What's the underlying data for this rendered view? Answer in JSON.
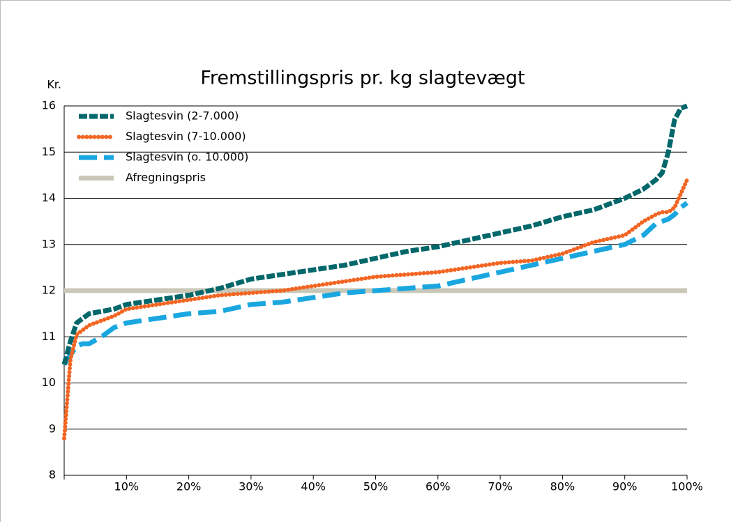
{
  "chart_data": {
    "type": "line",
    "title": "Fremstillingspris pr. kg slagtevægt",
    "ylabel": "Kr.",
    "x": [
      0,
      1,
      2,
      3,
      4,
      6,
      8,
      10,
      15,
      20,
      25,
      30,
      35,
      40,
      45,
      50,
      55,
      60,
      65,
      70,
      75,
      80,
      85,
      90,
      93,
      95,
      96,
      97,
      98,
      99,
      100
    ],
    "series": [
      {
        "name": "Slagtesvin (2-7.000)",
        "color": "#00676a",
        "style": "dashed",
        "values": [
          10.4,
          10.9,
          11.3,
          11.4,
          11.5,
          11.55,
          11.6,
          11.7,
          11.8,
          11.9,
          12.05,
          12.25,
          12.35,
          12.45,
          12.55,
          12.7,
          12.85,
          12.95,
          13.1,
          13.25,
          13.4,
          13.6,
          13.75,
          14.0,
          14.2,
          14.4,
          14.55,
          15.0,
          15.7,
          15.95,
          16.0
        ]
      },
      {
        "name": "Slagtesvin (7-10.000)",
        "color": "#f26522",
        "style": "dotted",
        "values": [
          8.8,
          10.5,
          11.05,
          11.15,
          11.25,
          11.35,
          11.45,
          11.6,
          11.7,
          11.8,
          11.9,
          11.95,
          12.0,
          12.1,
          12.2,
          12.3,
          12.35,
          12.4,
          12.5,
          12.6,
          12.65,
          12.8,
          13.05,
          13.2,
          13.5,
          13.65,
          13.7,
          13.7,
          13.8,
          14.1,
          14.4
        ]
      },
      {
        "name": "Slagtesvin (o. 10.000)",
        "color": "#1aa7e0",
        "style": "longdash",
        "values": [
          10.4,
          10.6,
          10.8,
          10.85,
          10.85,
          11.0,
          11.2,
          11.3,
          11.4,
          11.5,
          11.55,
          11.7,
          11.75,
          11.85,
          11.95,
          12.0,
          12.05,
          12.1,
          12.25,
          12.4,
          12.55,
          12.7,
          12.85,
          13.0,
          13.2,
          13.45,
          13.5,
          13.55,
          13.65,
          13.8,
          13.9
        ]
      },
      {
        "name": "Afregningspris",
        "color": "#c9c7b7",
        "style": "solid",
        "values": [
          12,
          12,
          12,
          12,
          12,
          12,
          12,
          12,
          12,
          12,
          12,
          12,
          12,
          12,
          12,
          12,
          12,
          12,
          12,
          12,
          12,
          12,
          12,
          12,
          12,
          12,
          12,
          12,
          12,
          12,
          12
        ]
      }
    ],
    "xlim": [
      0,
      100
    ],
    "xticks": [
      {
        "value": 10,
        "label": "10%"
      },
      {
        "value": 20,
        "label": "20%"
      },
      {
        "value": 30,
        "label": "30%"
      },
      {
        "value": 40,
        "label": "40%"
      },
      {
        "value": 50,
        "label": "50%"
      },
      {
        "value": 60,
        "label": "60%"
      },
      {
        "value": 70,
        "label": "70%"
      },
      {
        "value": 80,
        "label": "80%"
      },
      {
        "value": 90,
        "label": "90%"
      },
      {
        "value": 100,
        "label": "100%"
      }
    ],
    "ylim": [
      8,
      16
    ],
    "yticks": [
      8,
      9,
      10,
      11,
      12,
      13,
      14,
      15,
      16
    ],
    "grid": true,
    "legend": "top-left"
  }
}
